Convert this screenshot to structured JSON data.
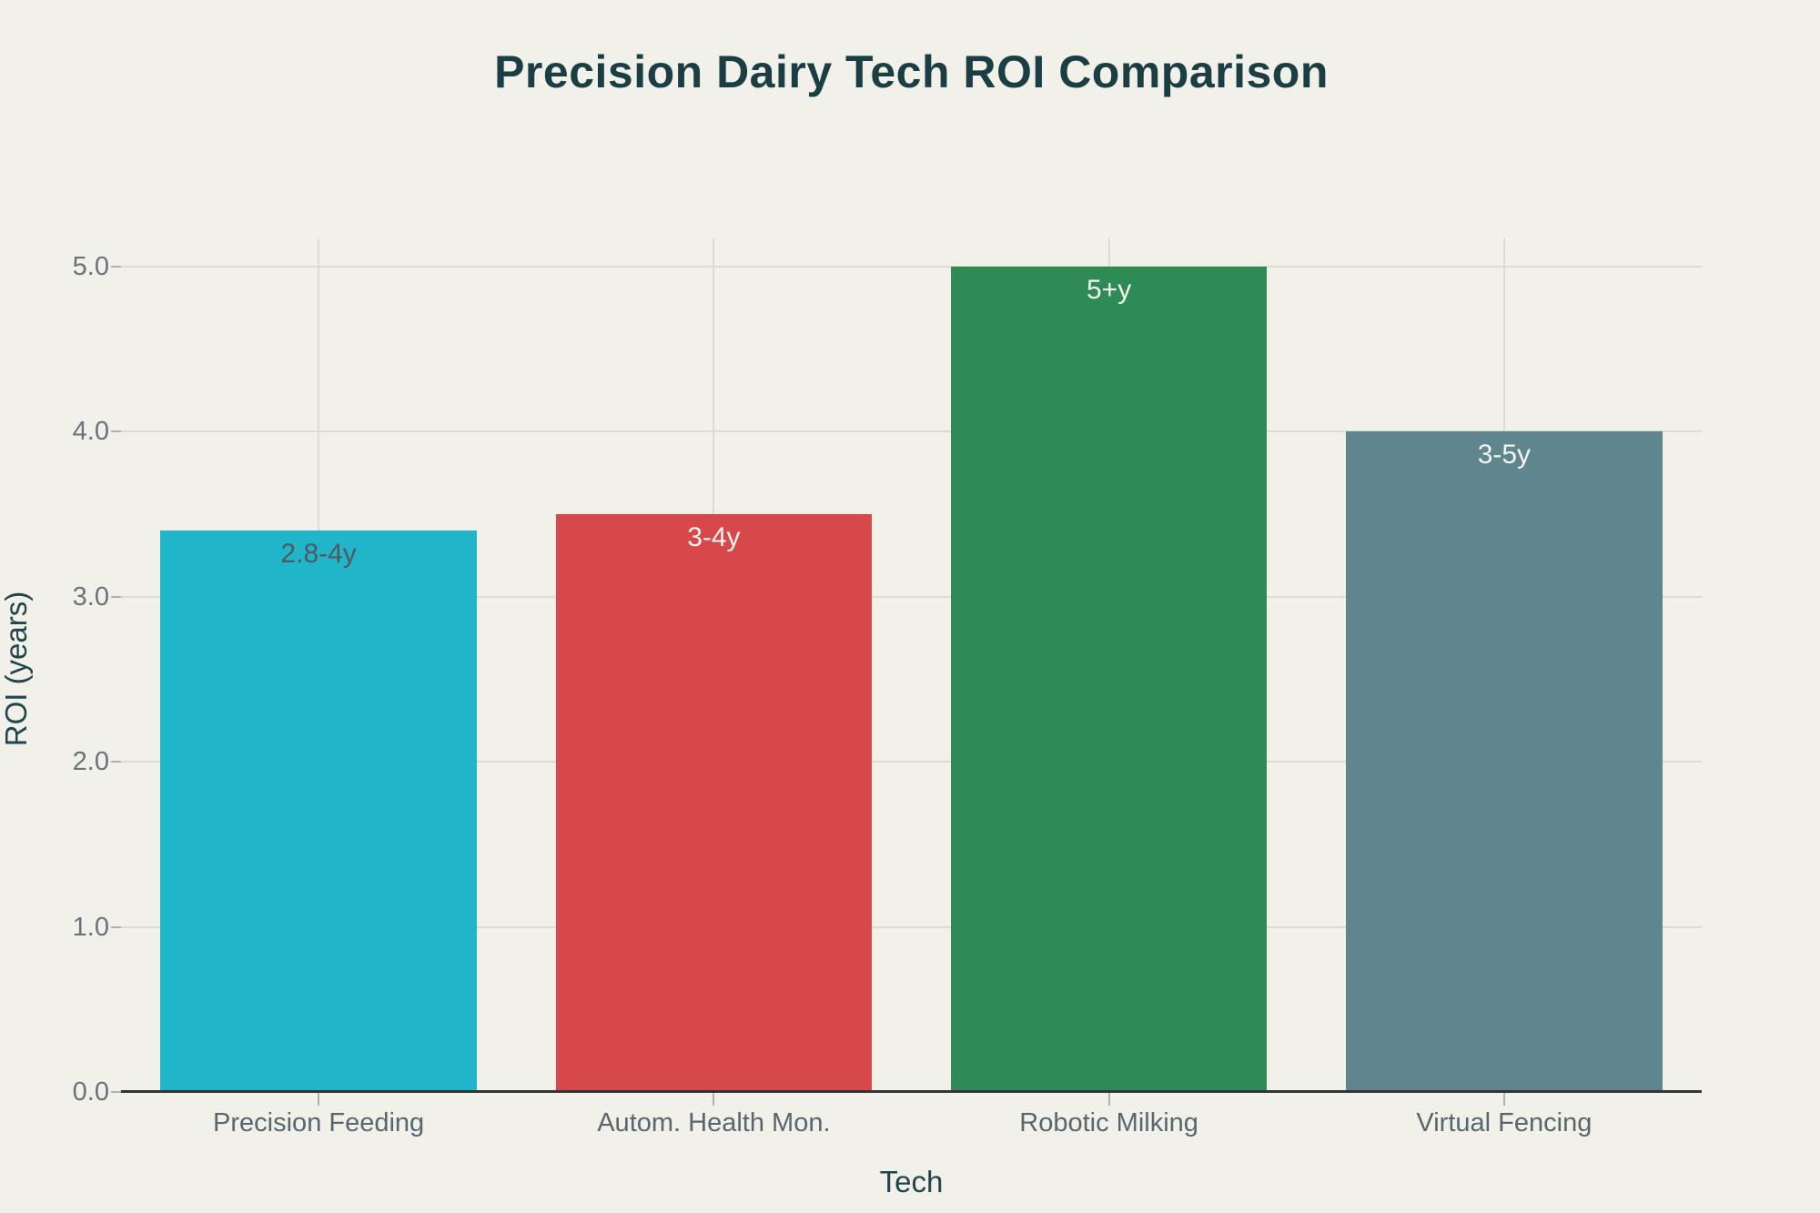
{
  "chart_data": {
    "type": "bar",
    "title": "Precision Dairy Tech ROI Comparison",
    "xlabel": "Tech",
    "ylabel": "ROI (years)",
    "categories": [
      "Precision Feeding",
      "Autom. Health Mon.",
      "Robotic Milking",
      "Virtual Fencing"
    ],
    "values": [
      3.4,
      3.5,
      5.0,
      4.0
    ],
    "bar_labels": [
      "2.8-4y",
      "3-4y",
      "5+y",
      "3-5y"
    ],
    "yticks": [
      0,
      1,
      2,
      3,
      4,
      5
    ],
    "ytick_labels": [
      "0.0",
      "1.0",
      "2.0",
      "3.0",
      "4.0",
      "5.0"
    ],
    "ylim": [
      0,
      5.17
    ],
    "grid": true,
    "legend_position": "none",
    "colors": {
      "background": "#f1f1ea",
      "bars": [
        "#21b5c9",
        "#d7484a",
        "#2f8b55",
        "#5f868f"
      ],
      "bar_label_text": [
        "#4e5a5d",
        "#f4f5ef",
        "#f4f5ef",
        "#f4f5ef"
      ],
      "title_text": "#1b3e45",
      "axis_title_text": "#22454c",
      "ytick_text": "#68737b",
      "xtick_text": "#59666d",
      "gridline": "#dddcd3",
      "axis_line": "#303536",
      "tick_mark": "#adb3ae"
    }
  }
}
